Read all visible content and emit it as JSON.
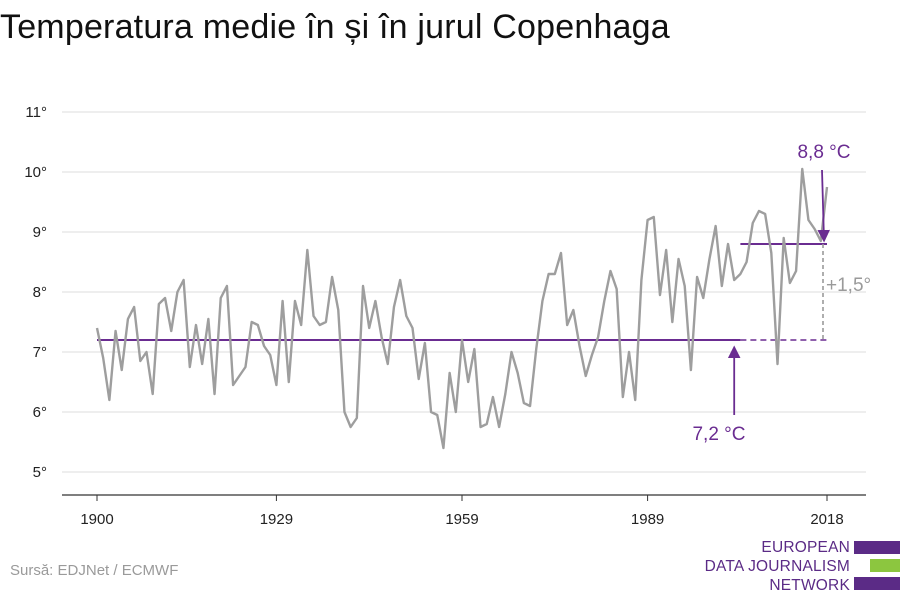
{
  "title": "Temperatura medie în și în jurul Copenhaga",
  "source": "Sursă: EDJNet / ECMWF",
  "logo": {
    "lines": [
      "EUROPEAN",
      "DATA JOURNALISM",
      "NETWORK"
    ],
    "colors": {
      "purple": "#5b2b86",
      "green": "#8cc63f"
    }
  },
  "colors": {
    "line": "#9e9e9e",
    "mean": "#6a2c91",
    "grid": "#dddddd",
    "axis": "#333333",
    "diff": "#9a9a9a"
  },
  "chart_data": {
    "type": "line",
    "title": "Temperatura medie în și în jurul Copenhaga",
    "xlabel": "",
    "ylabel": "",
    "x_ticks": [
      1900,
      1929,
      1959,
      1989,
      2018
    ],
    "y_ticks": [
      {
        "value": 5,
        "label": "5°"
      },
      {
        "value": 6,
        "label": "6°"
      },
      {
        "value": 7,
        "label": "7°"
      },
      {
        "value": 8,
        "label": "8°"
      },
      {
        "value": 9,
        "label": "9°"
      },
      {
        "value": 10,
        "label": "10°"
      },
      {
        "value": 11,
        "label": "11°"
      }
    ],
    "xlim": [
      1900,
      2018
    ],
    "ylim": [
      5,
      11
    ],
    "grid": true,
    "series": [
      {
        "values": [
          [
            1900,
            7.4
          ],
          [
            1901,
            6.9
          ],
          [
            1902,
            6.2
          ],
          [
            1903,
            7.35
          ],
          [
            1904,
            6.7
          ],
          [
            1905,
            7.55
          ],
          [
            1906,
            7.75
          ],
          [
            1907,
            6.85
          ],
          [
            1908,
            7.0
          ],
          [
            1909,
            6.3
          ],
          [
            1910,
            7.8
          ],
          [
            1911,
            7.9
          ],
          [
            1912,
            7.35
          ],
          [
            1913,
            8.0
          ],
          [
            1914,
            8.2
          ],
          [
            1915,
            6.75
          ],
          [
            1916,
            7.45
          ],
          [
            1917,
            6.8
          ],
          [
            1918,
            7.55
          ],
          [
            1919,
            6.3
          ],
          [
            1920,
            7.9
          ],
          [
            1921,
            8.1
          ],
          [
            1922,
            6.45
          ],
          [
            1923,
            6.6
          ],
          [
            1924,
            6.75
          ],
          [
            1925,
            7.5
          ],
          [
            1926,
            7.45
          ],
          [
            1927,
            7.1
          ],
          [
            1928,
            6.95
          ],
          [
            1929,
            6.45
          ],
          [
            1930,
            7.85
          ],
          [
            1931,
            6.5
          ],
          [
            1932,
            7.85
          ],
          [
            1933,
            7.45
          ],
          [
            1934,
            8.7
          ],
          [
            1935,
            7.6
          ],
          [
            1936,
            7.45
          ],
          [
            1937,
            7.5
          ],
          [
            1938,
            8.25
          ],
          [
            1939,
            7.7
          ],
          [
            1940,
            6.0
          ],
          [
            1941,
            5.75
          ],
          [
            1942,
            5.9
          ],
          [
            1943,
            8.1
          ],
          [
            1944,
            7.4
          ],
          [
            1945,
            7.85
          ],
          [
            1946,
            7.25
          ],
          [
            1947,
            6.8
          ],
          [
            1948,
            7.75
          ],
          [
            1949,
            8.2
          ],
          [
            1950,
            7.6
          ],
          [
            1951,
            7.4
          ],
          [
            1952,
            6.55
          ],
          [
            1953,
            7.15
          ],
          [
            1954,
            6.0
          ],
          [
            1955,
            5.95
          ],
          [
            1956,
            5.4
          ],
          [
            1957,
            6.65
          ],
          [
            1958,
            6.0
          ],
          [
            1959,
            7.2
          ],
          [
            1960,
            6.5
          ],
          [
            1961,
            7.05
          ],
          [
            1962,
            5.75
          ],
          [
            1963,
            5.8
          ],
          [
            1964,
            6.25
          ],
          [
            1965,
            5.75
          ],
          [
            1966,
            6.3
          ],
          [
            1967,
            7.0
          ],
          [
            1968,
            6.65
          ],
          [
            1969,
            6.15
          ],
          [
            1970,
            6.1
          ],
          [
            1971,
            7.05
          ],
          [
            1972,
            7.85
          ],
          [
            1973,
            8.3
          ],
          [
            1974,
            8.3
          ],
          [
            1975,
            8.65
          ],
          [
            1976,
            7.45
          ],
          [
            1977,
            7.7
          ],
          [
            1978,
            7.1
          ],
          [
            1979,
            6.6
          ],
          [
            1980,
            6.95
          ],
          [
            1981,
            7.25
          ],
          [
            1982,
            7.85
          ],
          [
            1983,
            8.35
          ],
          [
            1984,
            8.05
          ],
          [
            1985,
            6.25
          ],
          [
            1986,
            7.0
          ],
          [
            1987,
            6.2
          ],
          [
            1988,
            8.2
          ],
          [
            1989,
            9.2
          ],
          [
            1990,
            9.25
          ],
          [
            1991,
            7.95
          ],
          [
            1992,
            8.7
          ],
          [
            1993,
            7.5
          ],
          [
            1994,
            8.55
          ],
          [
            1995,
            8.1
          ],
          [
            1996,
            6.7
          ],
          [
            1997,
            8.25
          ],
          [
            1998,
            7.9
          ],
          [
            1999,
            8.55
          ],
          [
            2000,
            9.1
          ],
          [
            2001,
            8.1
          ],
          [
            2002,
            8.8
          ],
          [
            2003,
            8.2
          ],
          [
            2004,
            8.3
          ],
          [
            2005,
            8.5
          ],
          [
            2006,
            9.15
          ],
          [
            2007,
            9.35
          ],
          [
            2008,
            9.3
          ],
          [
            2009,
            8.65
          ],
          [
            2010,
            6.8
          ],
          [
            2011,
            8.9
          ],
          [
            2012,
            8.15
          ],
          [
            2013,
            8.35
          ],
          [
            2014,
            10.05
          ],
          [
            2015,
            9.2
          ],
          [
            2016,
            9.05
          ],
          [
            2017,
            8.85
          ],
          [
            2018,
            9.75
          ]
        ]
      }
    ],
    "reference_lines": {
      "overall_mean": {
        "value": 7.2,
        "from": 1900,
        "solid_to": 2004,
        "dashed_to": 2018
      },
      "recent_mean": {
        "value": 8.8,
        "from": 2004,
        "to": 2018
      }
    },
    "annotations": {
      "recent_mean_label": "8,8 °C",
      "overall_mean_label": "7,2 °C",
      "difference_label": "+1,5°"
    }
  }
}
